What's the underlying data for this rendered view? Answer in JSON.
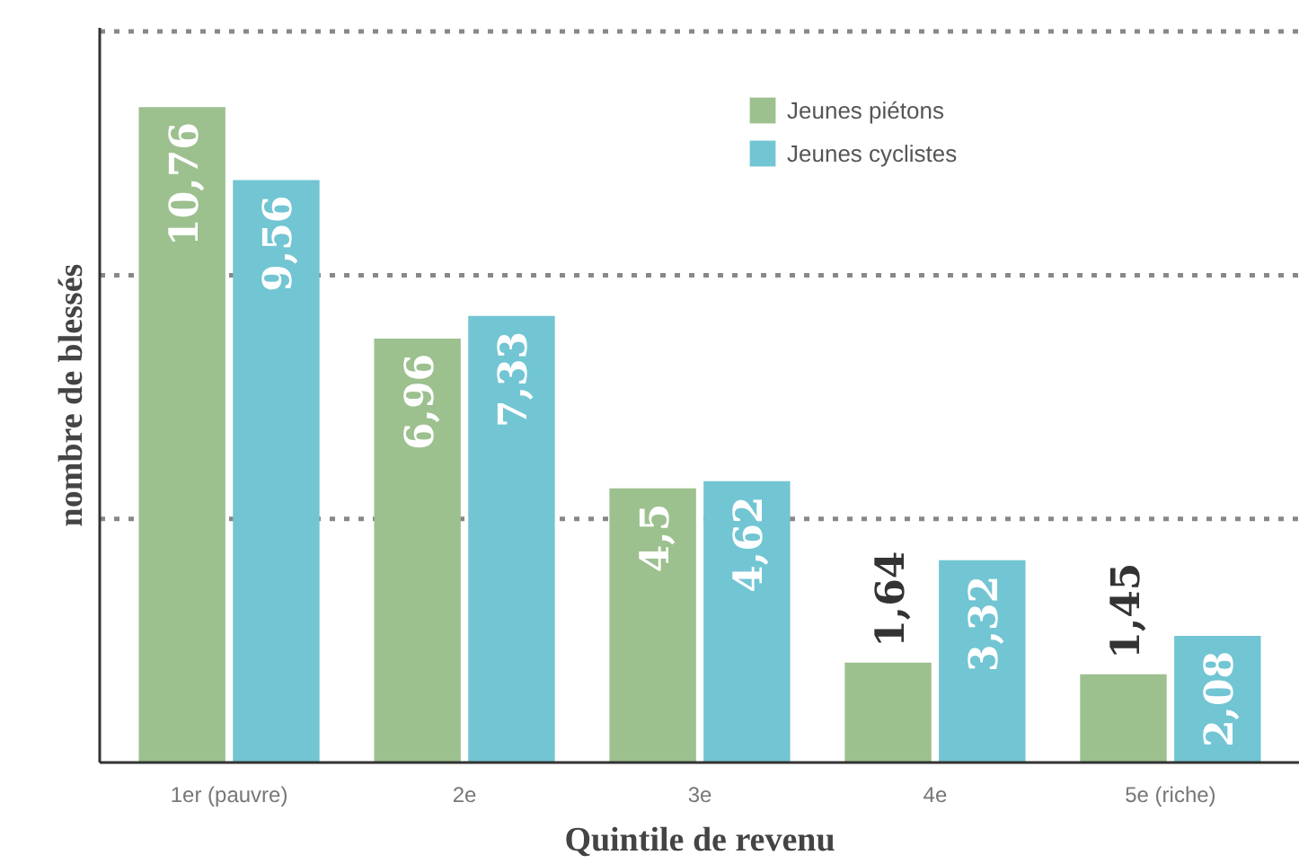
{
  "chart_data": {
    "type": "bar",
    "xlabel": "Quintile de revenu",
    "ylabel": "nombre de blessés",
    "categories": [
      "1er (pauvre)",
      "2e",
      "3e",
      "4e",
      "5e (riche)"
    ],
    "series": [
      {
        "name": "Jeunes piétons",
        "color": "#9dc08f",
        "values": [
          10.76,
          6.96,
          4.5,
          1.64,
          1.45
        ],
        "value_labels": [
          "10,76",
          "6,96",
          "4,5",
          "1,64",
          "1,45"
        ]
      },
      {
        "name": "Jeunes cyclistes",
        "color": "#72c5d3",
        "values": [
          9.56,
          7.33,
          4.62,
          3.32,
          2.08
        ],
        "value_labels": [
          "9,56",
          "7,33",
          "4,62",
          "3,32",
          "2,08"
        ]
      }
    ],
    "ylim": [
      0,
      12
    ],
    "ref_lines": [
      {
        "axis": "y",
        "value": 4,
        "color": "#888888",
        "line_style": "dotted"
      },
      {
        "axis": "y",
        "value": 8,
        "color": "#888888",
        "line_style": "dotted"
      },
      {
        "axis": "y",
        "value": 12,
        "color": "#888888",
        "line_style": "dotted"
      }
    ],
    "legend": "top right"
  }
}
